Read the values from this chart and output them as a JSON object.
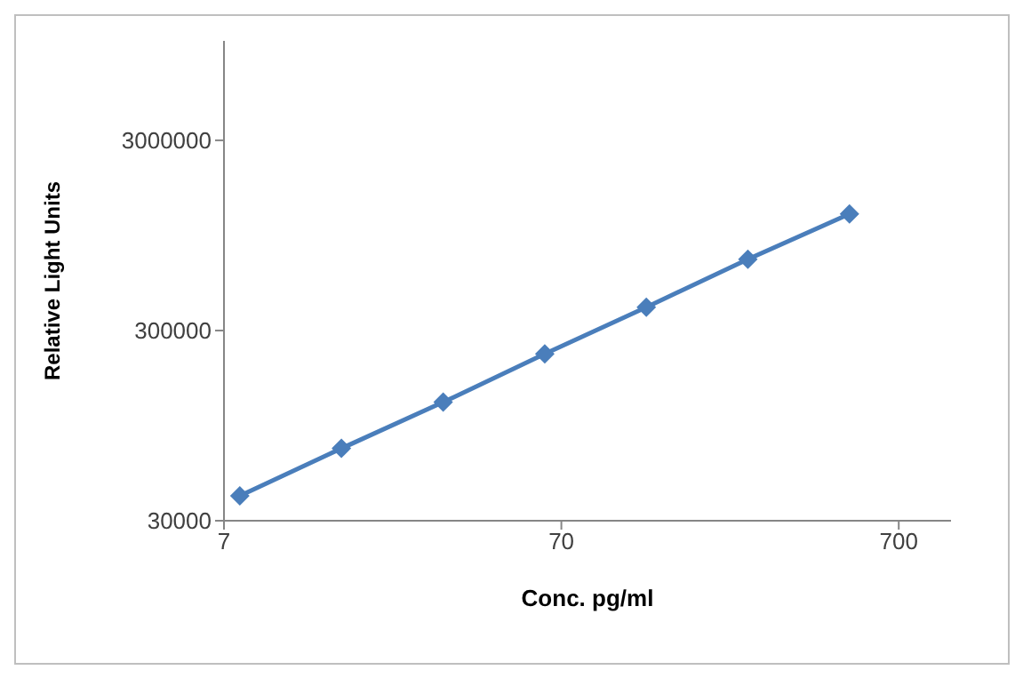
{
  "chart_data": {
    "type": "line",
    "xlabel": "Conc. pg/ml",
    "ylabel": "Relative Light Units",
    "x": [
      7.8,
      15.6,
      31.25,
      62.5,
      125,
      250,
      500
    ],
    "series": [
      {
        "color": "#4a7ebb",
        "values": [
          40500,
          72000,
          126000,
          226000,
          398000,
          711000,
          1230000
        ]
      }
    ],
    "log": "xy",
    "xlim": [
      7,
      1000
    ],
    "xticks": [
      7,
      70,
      700
    ],
    "ylim": [
      30000,
      10000000
    ],
    "yticks": [
      30000,
      300000,
      3000000
    ],
    "grid": false,
    "legend": false,
    "marker": "diamond",
    "line_style": "solid"
  }
}
